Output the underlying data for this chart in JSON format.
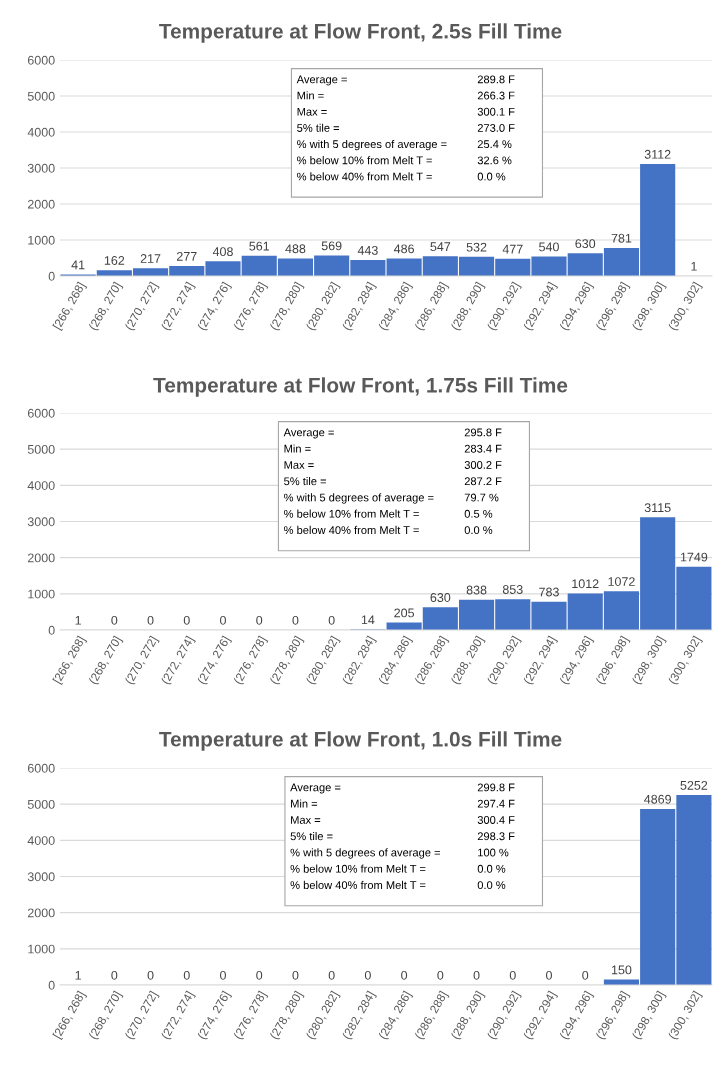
{
  "chart_data": [
    {
      "type": "bar",
      "title": "Temperature at Flow Front, 2.5s Fill Time",
      "categories": [
        "[266, 268]",
        "(268, 270]",
        "(270, 272]",
        "(272, 274]",
        "(274, 276]",
        "(276, 278]",
        "(278, 280]",
        "(280, 282]",
        "(282, 284]",
        "(284, 286]",
        "(286, 288]",
        "(288, 290]",
        "(290, 292]",
        "(292, 294]",
        "(294, 296]",
        "(296, 298]",
        "(298, 300]",
        "(300, 302]"
      ],
      "values": [
        41,
        162,
        217,
        277,
        408,
        561,
        488,
        569,
        443,
        486,
        547,
        532,
        477,
        540,
        630,
        781,
        3112,
        1
      ],
      "color": "#4472c4",
      "ylim": [
        0,
        6000
      ],
      "yticks": [
        0,
        1000,
        2000,
        3000,
        4000,
        5000,
        6000
      ],
      "grid": "y",
      "data_labels": true,
      "annotations": [
        "Average =",
        "289.8 F",
        "Min =",
        "266.3 F",
        "Max =",
        "300.1 F",
        "5% tile =",
        "273.0 F",
        "% with 5 degrees of average =",
        "25.4 %",
        "% below 10% from Melt T =",
        "32.6 %",
        "% below 40% from Melt T =",
        "0.0 %"
      ]
    },
    {
      "type": "bar",
      "title": "Temperature at Flow Front, 1.75s Fill Time",
      "categories": [
        "[266, 268]",
        "(268, 270]",
        "(270, 272]",
        "(272, 274]",
        "(274, 276]",
        "(276, 278]",
        "(278, 280]",
        "(280, 282]",
        "(282, 284]",
        "(284, 286]",
        "(286, 288]",
        "(288, 290]",
        "(290, 292]",
        "(292, 294]",
        "(294, 296]",
        "(296, 298]",
        "(298, 300]",
        "(300, 302]"
      ],
      "values": [
        1,
        0,
        0,
        0,
        0,
        0,
        0,
        0,
        14,
        205,
        630,
        838,
        853,
        783,
        1012,
        1072,
        3115,
        1749
      ],
      "color": "#4472c4",
      "ylim": [
        0,
        6000
      ],
      "yticks": [
        0,
        1000,
        2000,
        3000,
        4000,
        5000,
        6000
      ],
      "grid": "y",
      "data_labels": true,
      "annotations": [
        "Average =",
        "295.8 F",
        "Min =",
        "283.4 F",
        "Max =",
        "300.2 F",
        "5% tile =",
        "287.2 F",
        "% with 5 degrees of average =",
        "79.7 %",
        "% below 10% from Melt T =",
        "0.5 %",
        "% below 40% from Melt T =",
        "0.0 %"
      ]
    },
    {
      "type": "bar",
      "title": "Temperature at Flow Front, 1.0s Fill Time",
      "categories": [
        "[266, 268]",
        "(268, 270]",
        "(270, 272]",
        "(272, 274]",
        "(274, 276]",
        "(276, 278]",
        "(278, 280]",
        "(280, 282]",
        "(282, 284]",
        "(284, 286]",
        "(286, 288]",
        "(288, 290]",
        "(290, 292]",
        "(292, 294]",
        "(294, 296]",
        "(296, 298]",
        "(298, 300]",
        "(300, 302]"
      ],
      "values": [
        1,
        0,
        0,
        0,
        0,
        0,
        0,
        0,
        0,
        0,
        0,
        0,
        0,
        0,
        0,
        150,
        4869,
        5252
      ],
      "color": "#4472c4",
      "ylim": [
        0,
        6000
      ],
      "yticks": [
        0,
        1000,
        2000,
        3000,
        4000,
        5000,
        6000
      ],
      "grid": "y",
      "data_labels": true,
      "annotations": [
        "Average =",
        "299.8 F",
        "Min =",
        "297.4 F",
        "Max =",
        "300.4 F",
        "5% tile =",
        "298.3 F",
        "% with 5 degrees of average =",
        "100 %",
        "% below 10% from Melt T =",
        "0.0 %",
        "% below 40% from Melt T =",
        "0.0 %"
      ]
    }
  ]
}
